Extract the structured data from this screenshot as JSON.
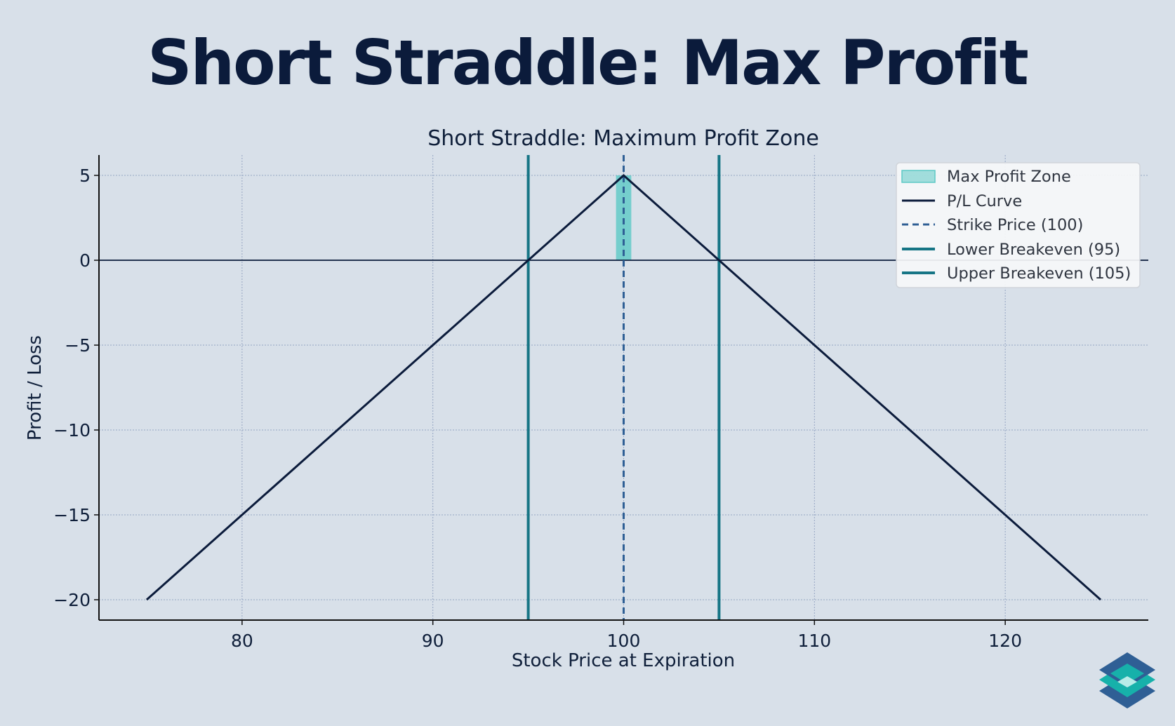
{
  "banner": {
    "title": "Short Straddle: Max Profit"
  },
  "colors": {
    "background": "#d8e0e9",
    "pl_curve": "#0b1b3b",
    "strike": "#2f5f95",
    "breakeven": "#167585",
    "zone_fill": "#5cc9c5",
    "grid": "#8ea0bf",
    "logo_dark": "#2f5f95",
    "logo_teal": "#17b1aa"
  },
  "logo": {
    "icon": "stacked-layers-logo-icon"
  },
  "chart_data": {
    "type": "line",
    "title": "Short Straddle: Maximum Profit Zone",
    "xlabel": "Stock Price at Expiration",
    "ylabel": "Profit / Loss",
    "xlim": [
      72.5,
      127.5
    ],
    "ylim": [
      -21.2,
      6.2
    ],
    "x_ticks": [
      80,
      90,
      100,
      110,
      120
    ],
    "y_ticks": [
      5,
      0,
      -5,
      -10,
      -15,
      -20
    ],
    "y_tick_labels": [
      "5",
      "0",
      "−5",
      "−10",
      "−15",
      "−20"
    ],
    "grid": true,
    "legend_position": "top-right",
    "series": [
      {
        "name": "P/L Curve",
        "x": [
          75,
          100,
          125
        ],
        "y": [
          -20,
          5,
          -20
        ]
      }
    ],
    "max_profit_zone": {
      "name": "Max Profit Zone",
      "x": [
        99.6,
        100.4
      ],
      "y": [
        0,
        5
      ]
    },
    "strike_line": {
      "name": "Strike Price (100)",
      "x": 100
    },
    "breakeven_lines": [
      {
        "name": "Lower Breakeven (95)",
        "x": 95
      },
      {
        "name": "Upper Breakeven (105)",
        "x": 105
      }
    ],
    "zero_line": 0
  }
}
